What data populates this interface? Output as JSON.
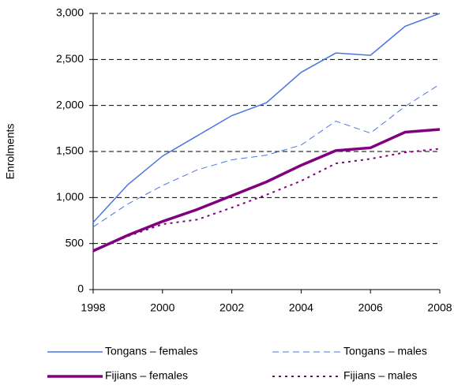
{
  "chart_data": {
    "type": "line",
    "y_label": "Enrolments",
    "x": [
      1998,
      1999,
      2000,
      2001,
      2002,
      2003,
      2004,
      2005,
      2006,
      2007,
      2008
    ],
    "xlim": [
      1998,
      2008
    ],
    "xticks": [
      1998,
      2000,
      2002,
      2004,
      2006,
      2008
    ],
    "ylim": [
      0,
      3000
    ],
    "yticks": [
      0,
      500,
      {
        "value": 1000,
        "label": "1,000"
      },
      {
        "value": 1500,
        "label": "1,500"
      },
      {
        "value": 2000,
        "label": "2,000"
      },
      {
        "value": 2500,
        "label": "2,500"
      },
      {
        "value": 3000,
        "label": "3,000"
      }
    ],
    "grid": true,
    "legend": "bottom",
    "series": [
      {
        "name": "Tongans – females",
        "color": "#4a76e0",
        "dash": "solid",
        "line_width": 1.5,
        "values": [
          730,
          1140,
          1450,
          1670,
          1890,
          2030,
          2360,
          2570,
          2545,
          2860,
          3000
        ]
      },
      {
        "name": "Tongans – males",
        "color": "#4a76e0",
        "dash": "dashed",
        "line_width": 1,
        "values": [
          680,
          930,
          1130,
          1300,
          1410,
          1460,
          1570,
          1830,
          1700,
          1990,
          2230
        ]
      },
      {
        "name": "Fijians – females",
        "color": "#800080",
        "dash": "solid",
        "line_width": 3.5,
        "values": [
          420,
          590,
          740,
          870,
          1020,
          1170,
          1350,
          1510,
          1540,
          1710,
          1740
        ]
      },
      {
        "name": "Fijians – males",
        "color": "#800080",
        "dash": "dotted",
        "line_width": 2,
        "values": [
          420,
          580,
          710,
          760,
          890,
          1030,
          1180,
          1370,
          1420,
          1490,
          1530
        ]
      }
    ]
  }
}
